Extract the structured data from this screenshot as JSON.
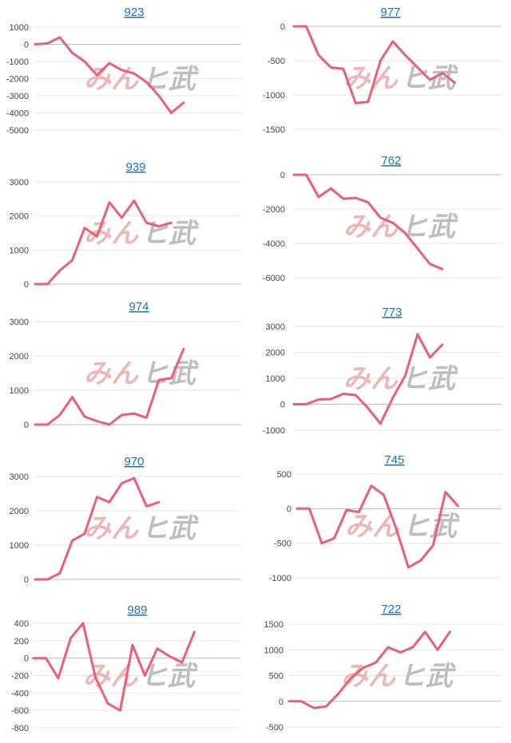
{
  "watermark": {
    "pink_part": "みん",
    "gray_part": "ヒ武"
  },
  "colors": {
    "series": "#ec5e78",
    "title_link": "#1f6fbf"
  },
  "chart_data": [
    {
      "type": "line",
      "title": "923",
      "yticks": [
        1000,
        0,
        -1000,
        -2000,
        -3000,
        -4000,
        -5000
      ],
      "ylim": [
        -5000,
        1000
      ],
      "values": [
        0,
        50,
        400,
        -500,
        -1000,
        -1800,
        -1100,
        -1500,
        -1700,
        -2200,
        -3000,
        -4000,
        -3400
      ]
    },
    {
      "type": "line",
      "title": "977",
      "yticks": [
        0,
        -500,
        -1000,
        -1500
      ],
      "ylim": [
        -1500,
        0
      ],
      "values": [
        0,
        0,
        -420,
        -600,
        -620,
        -1120,
        -1100,
        -500,
        -220,
        -420,
        -600,
        -780,
        -680,
        -820
      ]
    },
    {
      "type": "line",
      "title": "939",
      "yticks": [
        3000,
        2000,
        1000,
        0
      ],
      "ylim": [
        0,
        3000
      ],
      "values": [
        0,
        0,
        400,
        700,
        1650,
        1400,
        2400,
        1950,
        2450,
        1800,
        1700,
        1800
      ]
    },
    {
      "type": "line",
      "title": "762",
      "yticks": [
        0,
        -2000,
        -4000,
        -6000
      ],
      "ylim": [
        -6000,
        0
      ],
      "values": [
        0,
        0,
        -1300,
        -800,
        -1400,
        -1350,
        -1600,
        -2500,
        -2800,
        -3400,
        -4300,
        -5200,
        -5500
      ]
    },
    {
      "type": "line",
      "title": "974",
      "yticks": [
        3000,
        2000,
        1000,
        0
      ],
      "ylim": [
        0,
        3000
      ],
      "values": [
        0,
        0,
        280,
        800,
        230,
        100,
        0,
        280,
        320,
        200,
        1300,
        1350,
        2200
      ]
    },
    {
      "type": "line",
      "title": "773",
      "yticks": [
        3000,
        2000,
        1000,
        0,
        -1000
      ],
      "ylim": [
        -1000,
        3000
      ],
      "values": [
        0,
        0,
        180,
        200,
        400,
        350,
        -150,
        -750,
        250,
        1100,
        2700,
        1800,
        2300
      ]
    },
    {
      "type": "line",
      "title": "970",
      "yticks": [
        3000,
        2000,
        1000,
        0
      ],
      "ylim": [
        0,
        3000
      ],
      "values": [
        0,
        0,
        180,
        1130,
        1330,
        2400,
        2250,
        2800,
        2950,
        2130,
        2250
      ]
    },
    {
      "type": "line",
      "title": "745",
      "yticks": [
        500,
        0,
        -500,
        -1000
      ],
      "ylim": [
        -1000,
        500
      ],
      "values": [
        0,
        0,
        -500,
        -430,
        -20,
        -50,
        330,
        200,
        -280,
        -850,
        -750,
        -530,
        240,
        40
      ]
    },
    {
      "type": "line",
      "title": "989",
      "yticks": [
        400,
        200,
        0,
        -200,
        -400,
        -600,
        -800
      ],
      "ylim": [
        -800,
        400
      ],
      "values": [
        0,
        0,
        -230,
        230,
        400,
        -220,
        -520,
        -600,
        150,
        -200,
        110,
        20,
        -50,
        300
      ]
    },
    {
      "type": "line",
      "title": "722",
      "yticks": [
        1500,
        1000,
        500,
        0,
        -500
      ],
      "ylim": [
        -500,
        1500
      ],
      "values": [
        0,
        0,
        -130,
        -100,
        150,
        450,
        650,
        750,
        1050,
        950,
        1050,
        1350,
        1000,
        1350
      ]
    }
  ]
}
